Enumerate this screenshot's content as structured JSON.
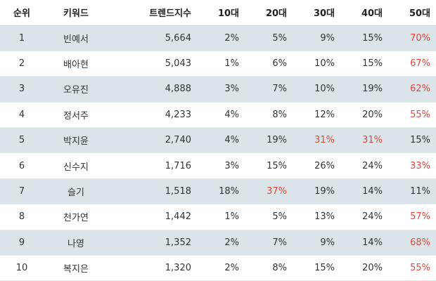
{
  "headers": {
    "rank": "순위",
    "keyword": "키워드",
    "trend": "트렌드지수",
    "age10": "10대",
    "age20": "20대",
    "age30": "30대",
    "age40": "40대",
    "age50": "50대"
  },
  "highlight_color": "#e8453c",
  "rows": [
    {
      "rank": "1",
      "keyword": "빈예서",
      "trend": "5,664",
      "age10": "2%",
      "age20": "5%",
      "age30": "9%",
      "age40": "15%",
      "age50": "70%",
      "highlight": [
        "age50"
      ]
    },
    {
      "rank": "2",
      "keyword": "배아현",
      "trend": "5,043",
      "age10": "1%",
      "age20": "6%",
      "age30": "10%",
      "age40": "15%",
      "age50": "67%",
      "highlight": [
        "age50"
      ]
    },
    {
      "rank": "3",
      "keyword": "오유진",
      "trend": "4,888",
      "age10": "3%",
      "age20": "7%",
      "age30": "10%",
      "age40": "19%",
      "age50": "62%",
      "highlight": [
        "age50"
      ]
    },
    {
      "rank": "4",
      "keyword": "정서주",
      "trend": "4,233",
      "age10": "4%",
      "age20": "8%",
      "age30": "12%",
      "age40": "20%",
      "age50": "55%",
      "highlight": [
        "age50"
      ]
    },
    {
      "rank": "5",
      "keyword": "박지윤",
      "trend": "2,740",
      "age10": "4%",
      "age20": "19%",
      "age30": "31%",
      "age40": "31%",
      "age50": "15%",
      "highlight": [
        "age30",
        "age40"
      ]
    },
    {
      "rank": "6",
      "keyword": "신수지",
      "trend": "1,716",
      "age10": "3%",
      "age20": "15%",
      "age30": "26%",
      "age40": "24%",
      "age50": "33%",
      "highlight": [
        "age50"
      ]
    },
    {
      "rank": "7",
      "keyword": "슬기",
      "trend": "1,518",
      "age10": "18%",
      "age20": "37%",
      "age30": "19%",
      "age40": "14%",
      "age50": "11%",
      "highlight": [
        "age20"
      ]
    },
    {
      "rank": "8",
      "keyword": "천가연",
      "trend": "1,442",
      "age10": "1%",
      "age20": "5%",
      "age30": "13%",
      "age40": "24%",
      "age50": "57%",
      "highlight": [
        "age50"
      ]
    },
    {
      "rank": "9",
      "keyword": "나영",
      "trend": "1,352",
      "age10": "2%",
      "age20": "7%",
      "age30": "9%",
      "age40": "14%",
      "age50": "68%",
      "highlight": [
        "age50"
      ]
    },
    {
      "rank": "10",
      "keyword": "복지은",
      "trend": "1,320",
      "age10": "2%",
      "age20": "8%",
      "age30": "15%",
      "age40": "20%",
      "age50": "55%",
      "highlight": [
        "age50"
      ]
    }
  ]
}
